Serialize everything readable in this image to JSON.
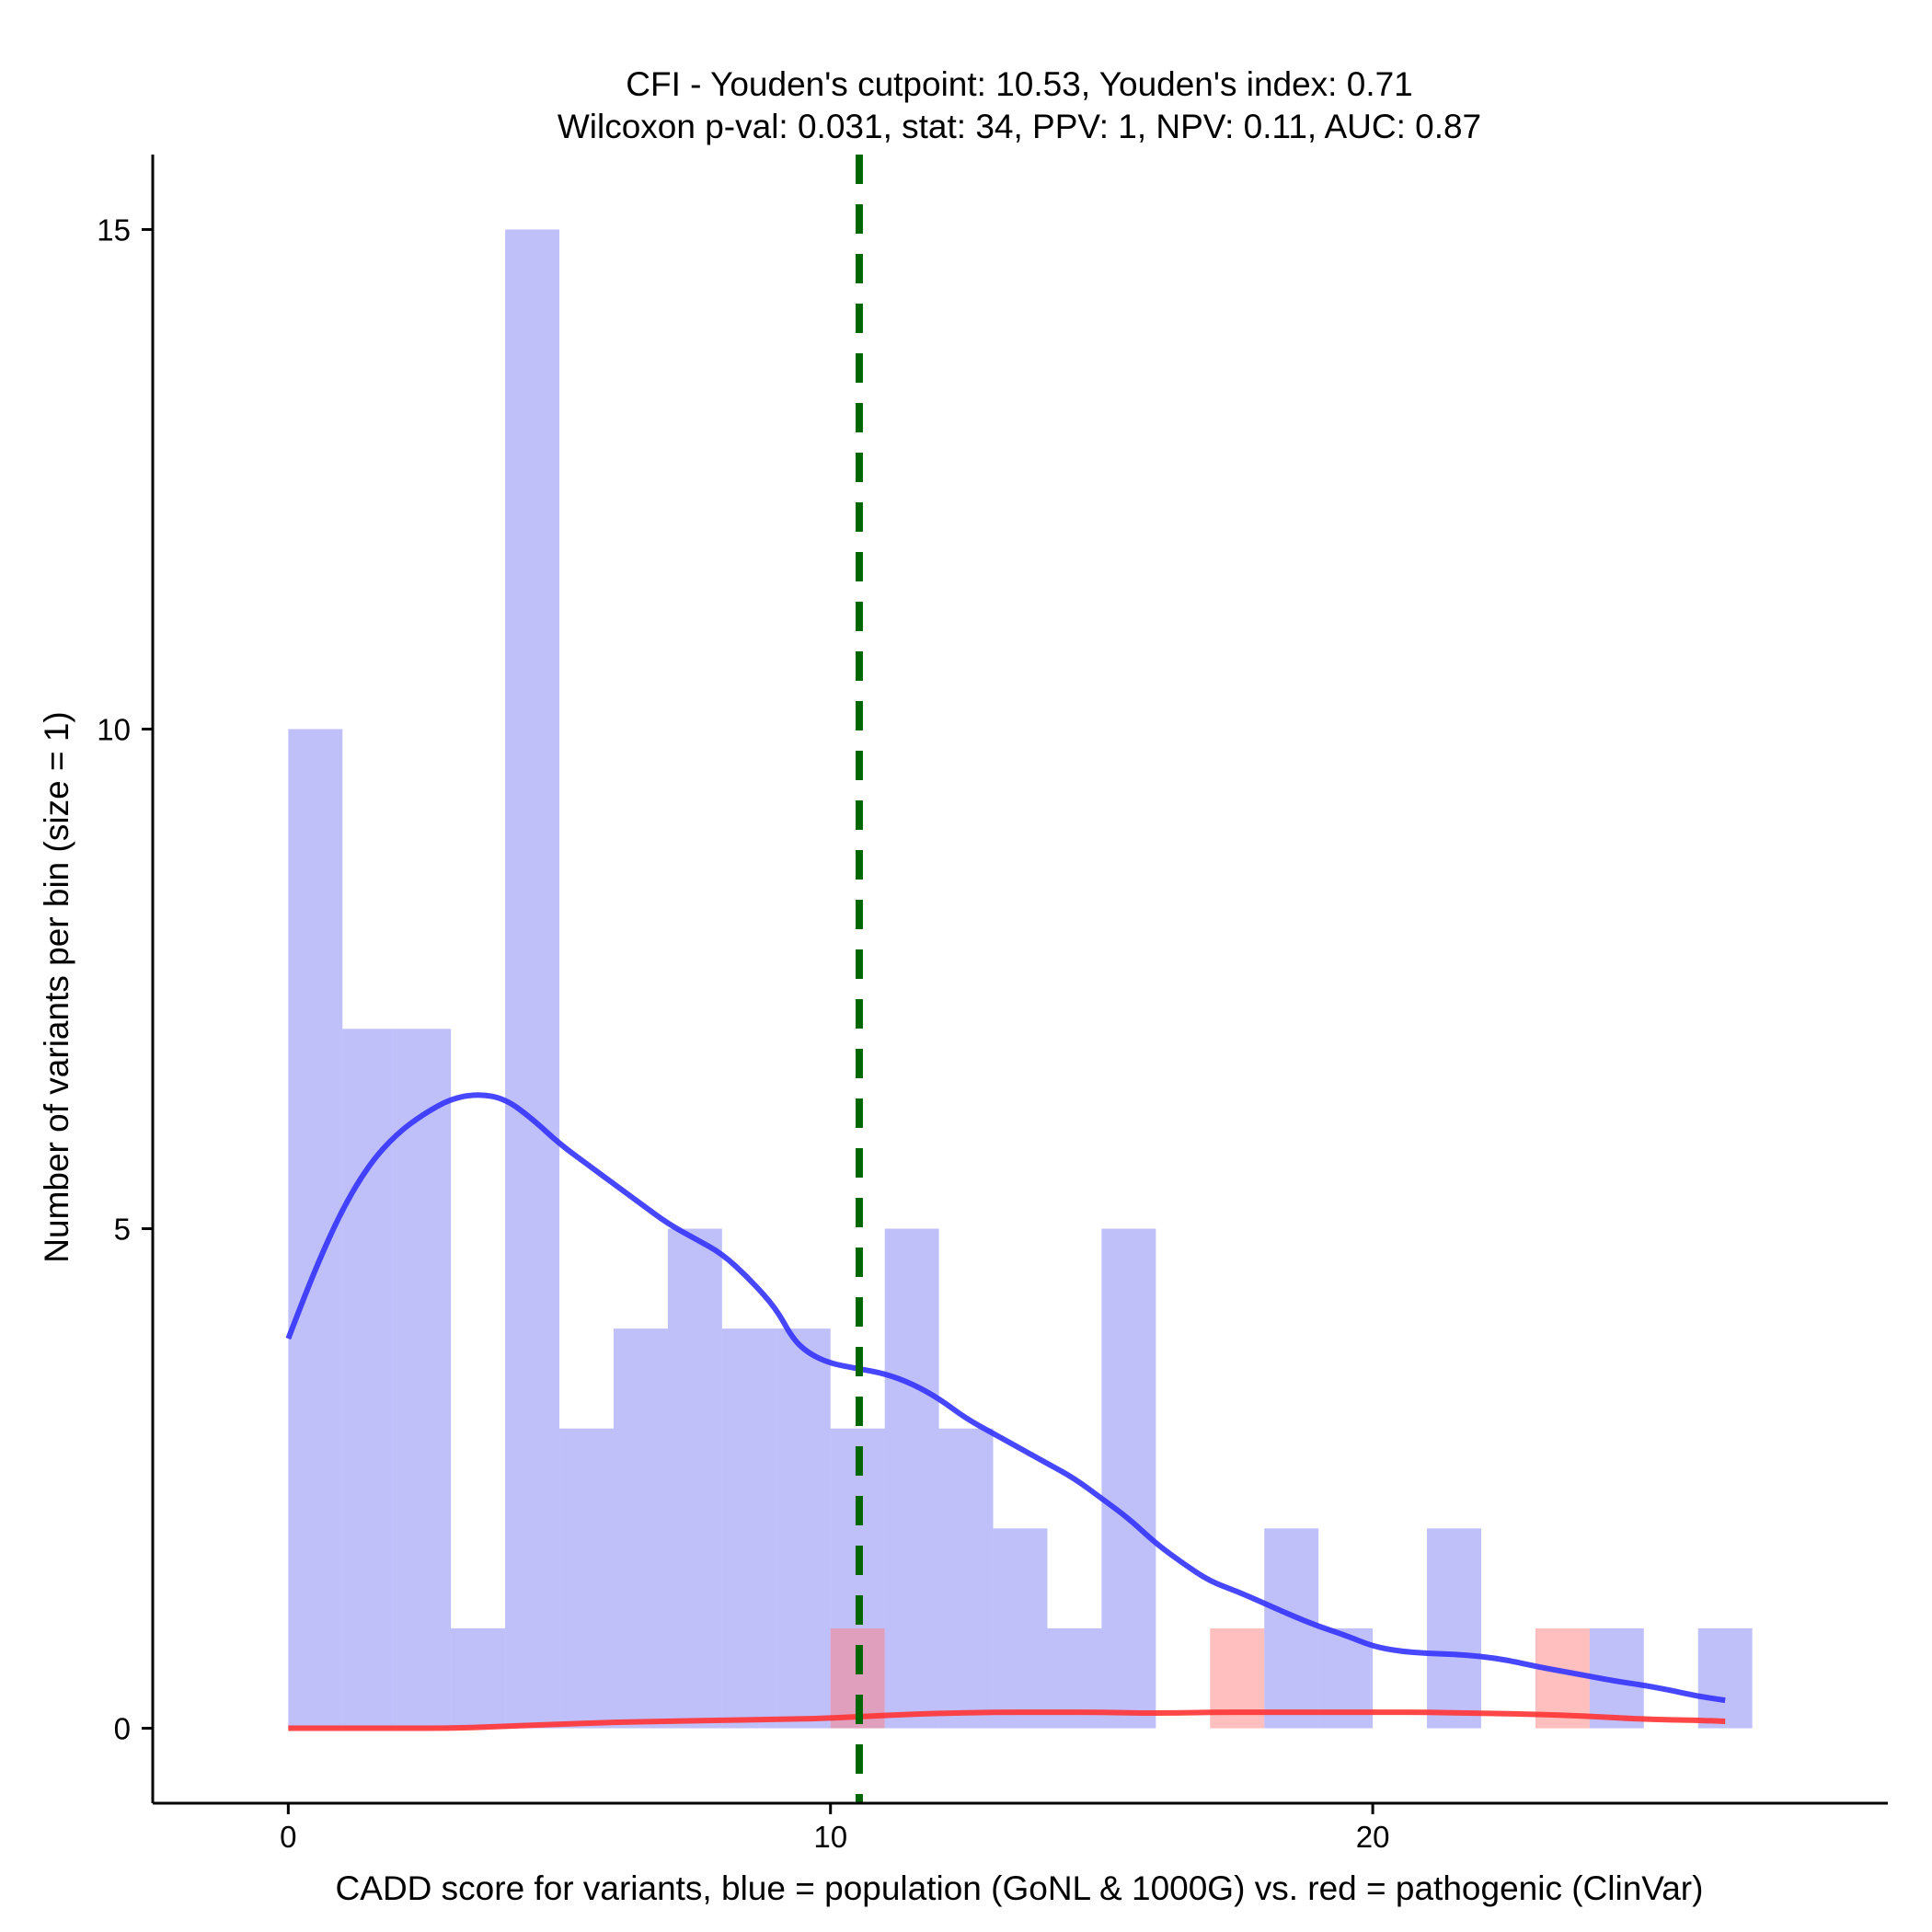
{
  "chart_data": {
    "type": "histogram",
    "title": [
      "CFI - Youden's cutpoint: 10.53, Youden's index: 0.71",
      "Wilcoxon p-val: 0.031, stat: 34, PPV: 1, NPV: 0.11, AUC: 0.87"
    ],
    "xlabel": "CADD score for variants, blue = population (GoNL & 1000G) vs. red = pathogenic (ClinVar)",
    "ylabel": "Number of variants per bin (size = 1)",
    "xlim": [
      -2.5,
      29.5
    ],
    "ylim": [
      -0.75,
      15.75
    ],
    "xticks": [
      {
        "value": 0,
        "label": "0"
      },
      {
        "value": 10,
        "label": "10"
      },
      {
        "value": 20,
        "label": "20"
      }
    ],
    "yticks": [
      {
        "value": 0,
        "label": "0"
      },
      {
        "value": 5,
        "label": "5"
      },
      {
        "value": 10,
        "label": "10"
      },
      {
        "value": 15,
        "label": "15"
      }
    ],
    "bin_width": 1,
    "series": [
      {
        "name": "population (GoNL & 1000G)",
        "color": "#7f7ff5",
        "opacity": 0.5,
        "bins": [
          {
            "start": 0,
            "count": 10
          },
          {
            "start": 1,
            "count": 7
          },
          {
            "start": 2,
            "count": 7
          },
          {
            "start": 3,
            "count": 1
          },
          {
            "start": 4,
            "count": 15
          },
          {
            "start": 5,
            "count": 3
          },
          {
            "start": 6,
            "count": 4
          },
          {
            "start": 7,
            "count": 5
          },
          {
            "start": 8,
            "count": 4
          },
          {
            "start": 9,
            "count": 4
          },
          {
            "start": 10,
            "count": 3
          },
          {
            "start": 11,
            "count": 5
          },
          {
            "start": 12,
            "count": 3
          },
          {
            "start": 13,
            "count": 2
          },
          {
            "start": 14,
            "count": 1
          },
          {
            "start": 15,
            "count": 5
          },
          {
            "start": 18,
            "count": 2
          },
          {
            "start": 19,
            "count": 1
          },
          {
            "start": 21,
            "count": 2
          },
          {
            "start": 24,
            "count": 1
          },
          {
            "start": 26,
            "count": 1
          }
        ]
      },
      {
        "name": "pathogenic (ClinVar)",
        "color": "#ff8080",
        "opacity": 0.5,
        "bins": [
          {
            "start": 10,
            "count": 1
          },
          {
            "start": 17,
            "count": 1
          },
          {
            "start": 23,
            "count": 1
          }
        ]
      }
    ],
    "density_lines": [
      {
        "name": "population density",
        "color": "#3333ff",
        "points": [
          [
            0,
            3.9
          ],
          [
            0.5,
            4.6
          ],
          [
            1,
            5.2
          ],
          [
            1.5,
            5.65
          ],
          [
            2,
            5.95
          ],
          [
            2.5,
            6.15
          ],
          [
            3,
            6.3
          ],
          [
            3.5,
            6.35
          ],
          [
            4,
            6.3
          ],
          [
            4.5,
            6.1
          ],
          [
            5,
            5.85
          ],
          [
            5.5,
            5.65
          ],
          [
            6,
            5.45
          ],
          [
            6.5,
            5.25
          ],
          [
            7,
            5.05
          ],
          [
            7.5,
            4.9
          ],
          [
            8,
            4.75
          ],
          [
            8.5,
            4.5
          ],
          [
            9,
            4.2
          ],
          [
            9.3,
            3.9
          ],
          [
            9.6,
            3.75
          ],
          [
            10,
            3.65
          ],
          [
            10.5,
            3.6
          ],
          [
            11,
            3.55
          ],
          [
            11.5,
            3.45
          ],
          [
            12,
            3.3
          ],
          [
            12.5,
            3.1
          ],
          [
            13,
            2.95
          ],
          [
            13.5,
            2.8
          ],
          [
            14,
            2.65
          ],
          [
            14.5,
            2.5
          ],
          [
            15,
            2.3
          ],
          [
            15.5,
            2.1
          ],
          [
            16,
            1.85
          ],
          [
            16.5,
            1.65
          ],
          [
            17,
            1.47
          ],
          [
            17.5,
            1.37
          ],
          [
            18,
            1.25
          ],
          [
            18.5,
            1.13
          ],
          [
            19,
            1.02
          ],
          [
            19.5,
            0.93
          ],
          [
            20,
            0.82
          ],
          [
            20.5,
            0.77
          ],
          [
            21,
            0.75
          ],
          [
            21.5,
            0.74
          ],
          [
            22,
            0.72
          ],
          [
            22.5,
            0.68
          ],
          [
            23,
            0.62
          ],
          [
            23.5,
            0.57
          ],
          [
            24,
            0.52
          ],
          [
            24.5,
            0.47
          ],
          [
            25,
            0.43
          ],
          [
            25.5,
            0.38
          ],
          [
            26,
            0.32
          ],
          [
            26.5,
            0.28
          ]
        ]
      },
      {
        "name": "pathogenic density",
        "color": "#ff3333",
        "points": [
          [
            0,
            0
          ],
          [
            1,
            0
          ],
          [
            2,
            0
          ],
          [
            3,
            0
          ],
          [
            4,
            0.02
          ],
          [
            5,
            0.04
          ],
          [
            6,
            0.06
          ],
          [
            7,
            0.07
          ],
          [
            8,
            0.08
          ],
          [
            9,
            0.09
          ],
          [
            10,
            0.1
          ],
          [
            11,
            0.13
          ],
          [
            12,
            0.15
          ],
          [
            13,
            0.16
          ],
          [
            14,
            0.16
          ],
          [
            15,
            0.16
          ],
          [
            16,
            0.15
          ],
          [
            17,
            0.16
          ],
          [
            18,
            0.16
          ],
          [
            19,
            0.16
          ],
          [
            20,
            0.16
          ],
          [
            21,
            0.16
          ],
          [
            22,
            0.15
          ],
          [
            23,
            0.14
          ],
          [
            24,
            0.12
          ],
          [
            25,
            0.09
          ],
          [
            26,
            0.08
          ],
          [
            26.5,
            0.07
          ]
        ]
      }
    ],
    "cutpoint_line": {
      "x": 10.53,
      "color": "#006600",
      "style": "dashed"
    }
  }
}
